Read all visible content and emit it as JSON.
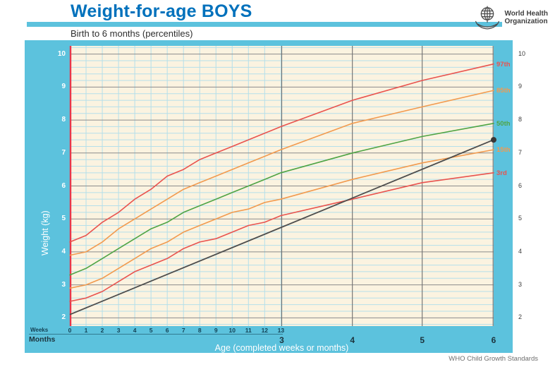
{
  "header": {
    "title": "Weight-for-age BOYS",
    "subtitle": "Birth to 6 months (percentiles)"
  },
  "who_logo": {
    "line1": "World Health",
    "line2": "Organization"
  },
  "footer": {
    "credit": "WHO Child Growth Standards"
  },
  "axes": {
    "x_title": "Age (completed weeks or months)",
    "y_title": "Weight (kg)",
    "weeks_label": "Weeks",
    "months_label": "Months",
    "y_ticks": [
      2,
      3,
      4,
      5,
      6,
      7,
      8,
      9,
      10
    ],
    "week_ticks": [
      0,
      1,
      2,
      3,
      4,
      5,
      6,
      7,
      8,
      9,
      10,
      11,
      12,
      13
    ],
    "month_ticks": [
      {
        "label": "3",
        "weeks": 13.05
      },
      {
        "label": "4",
        "weeks": 17.4
      },
      {
        "label": "5",
        "weeks": 21.7
      },
      {
        "label": "6",
        "weeks": 26.1
      }
    ]
  },
  "chart_data": {
    "type": "line",
    "title": "Weight-for-age BOYS",
    "subtitle": "Birth to 6 months (percentiles)",
    "xlabel": "Age (completed weeks or months)",
    "ylabel": "Weight (kg)",
    "x_weeks": [
      0,
      1,
      2,
      3,
      4,
      5,
      6,
      7,
      8,
      9,
      10,
      11,
      12,
      13,
      17.4,
      21.7,
      26.1
    ],
    "xlim_weeks": [
      0,
      26.1
    ],
    "ylim": [
      1.75,
      10.25
    ],
    "series": [
      {
        "name": "97th",
        "color": "#e9534e",
        "values": [
          4.3,
          4.5,
          4.9,
          5.2,
          5.6,
          5.9,
          6.3,
          6.5,
          6.8,
          7.0,
          7.2,
          7.4,
          7.6,
          7.8,
          8.6,
          9.2,
          9.7
        ]
      },
      {
        "name": "85th",
        "color": "#f29a4e",
        "values": [
          3.9,
          4.0,
          4.3,
          4.7,
          5.0,
          5.3,
          5.6,
          5.9,
          6.1,
          6.3,
          6.5,
          6.7,
          6.9,
          7.1,
          7.9,
          8.4,
          8.9
        ]
      },
      {
        "name": "50th",
        "color": "#4fa445",
        "values": [
          3.3,
          3.5,
          3.8,
          4.1,
          4.4,
          4.7,
          4.9,
          5.2,
          5.4,
          5.6,
          5.8,
          6.0,
          6.2,
          6.4,
          7.0,
          7.5,
          7.9
        ]
      },
      {
        "name": "15th",
        "color": "#f29a4e",
        "values": [
          2.9,
          3.0,
          3.2,
          3.5,
          3.8,
          4.1,
          4.3,
          4.6,
          4.8,
          5.0,
          5.2,
          5.3,
          5.5,
          5.6,
          6.2,
          6.7,
          7.1
        ]
      },
      {
        "name": "3rd",
        "color": "#e9534e",
        "values": [
          2.5,
          2.6,
          2.8,
          3.1,
          3.4,
          3.6,
          3.8,
          4.1,
          4.3,
          4.4,
          4.6,
          4.8,
          4.9,
          5.1,
          5.6,
          6.1,
          6.4
        ]
      }
    ],
    "plotted_series": {
      "name": "child-measurement-line",
      "color": "#4d4d4d",
      "points": [
        {
          "weeks": 0,
          "kg": 2.1
        },
        {
          "weeks": 26.1,
          "kg": 7.4
        }
      ]
    },
    "grid": {
      "background": "#fbf3e0",
      "minor_color": "#b5dfea",
      "major_h_color": "#8b8b8b",
      "major_v_color": "#6f6f6f",
      "axis_color": "#e8374a"
    }
  }
}
